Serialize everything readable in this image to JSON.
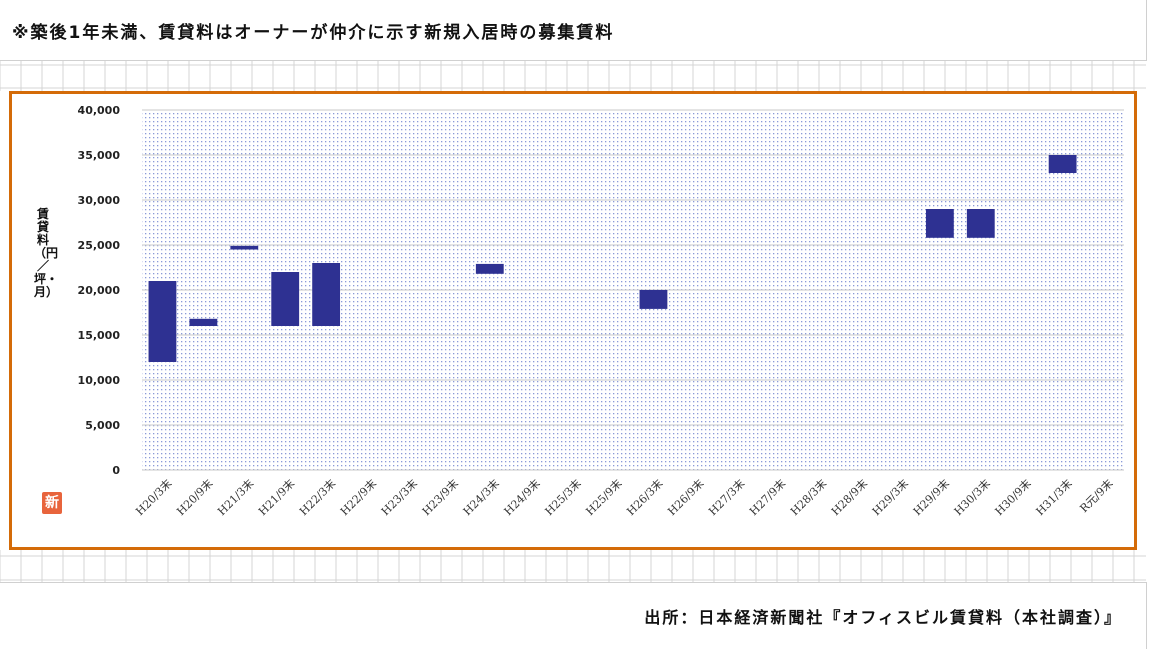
{
  "note": "※築後1年未満、賃貸料はオーナーが仲介に示す新規入居時の募集賃料",
  "source": "出所：日本経済新聞社『オフィスビル賃貸料（本社調査）』",
  "badge": "新",
  "colors": {
    "frame": "#d46b08",
    "bar": "#2e3192",
    "plot_dots": "#8a9ad8",
    "grid": "#cfcfcf"
  },
  "chart_data": {
    "type": "bar",
    "subtype": "floating-range",
    "ylabel": "賃貸料（円／坪・月）",
    "xlabel": "",
    "ylim": [
      0,
      40000
    ],
    "y_ticks": [
      0,
      5000,
      10000,
      15000,
      20000,
      25000,
      30000,
      35000,
      40000
    ],
    "y_tick_labels": [
      "0",
      "5,000",
      "10,000",
      "15,000",
      "20,000",
      "25,000",
      "30,000",
      "35,000",
      "40,000"
    ],
    "categories": [
      "H20/3末",
      "H20/9末",
      "H21/3末",
      "H21/9末",
      "H22/3末",
      "H22/9末",
      "H23/3末",
      "H23/9末",
      "H24/3末",
      "H24/9末",
      "H25/3末",
      "H25/9末",
      "H26/3末",
      "H26/9末",
      "H27/3末",
      "H27/9末",
      "H28/3末",
      "H28/9末",
      "H29/3末",
      "H29/9末",
      "H30/3末",
      "H30/9末",
      "H31/3末",
      "R元/9末"
    ],
    "series": [
      {
        "low": [
          12000,
          16000,
          24500,
          16000,
          16000,
          null,
          null,
          null,
          21800,
          null,
          null,
          null,
          17900,
          null,
          null,
          null,
          null,
          null,
          null,
          25800,
          25800,
          null,
          33000,
          null
        ],
        "high": [
          21000,
          16800,
          24900,
          22000,
          23000,
          null,
          null,
          null,
          22900,
          null,
          null,
          null,
          20000,
          null,
          null,
          null,
          null,
          null,
          null,
          29000,
          29000,
          null,
          35000,
          null
        ]
      }
    ],
    "grid": true,
    "legend": "none"
  }
}
